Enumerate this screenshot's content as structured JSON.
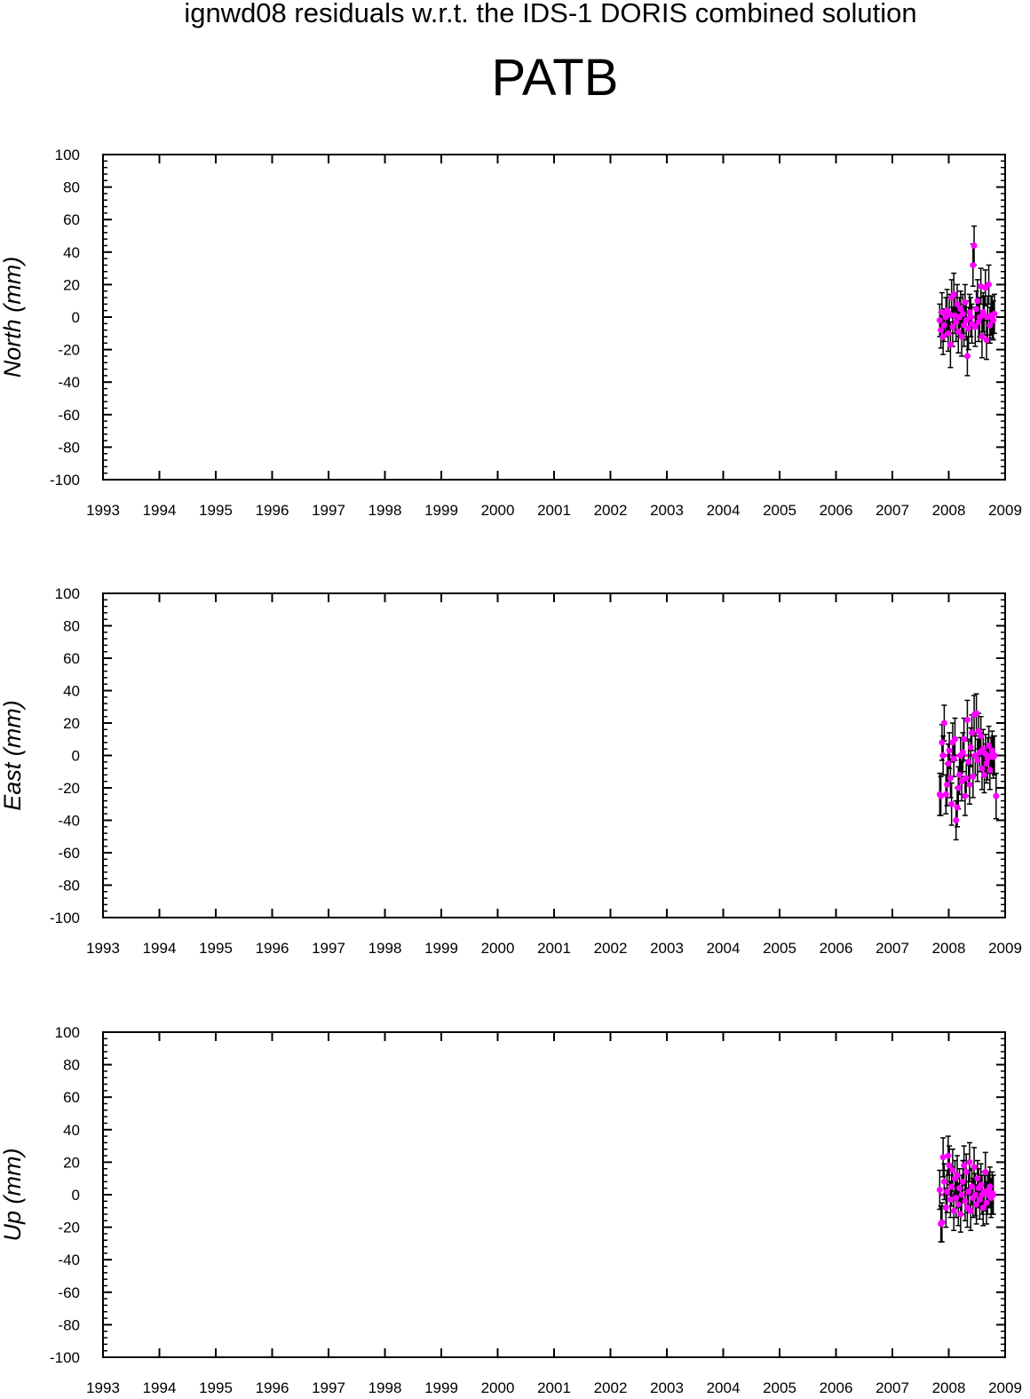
{
  "figure": {
    "title": "ignwd08 residuals w.r.t. the IDS-1 DORIS combined solution",
    "station": "PATB"
  },
  "chart_data": [
    {
      "type": "scatter",
      "panel": "north",
      "ylabel": "North (mm)",
      "xlim": [
        1993,
        2009
      ],
      "ylim": [
        -100,
        100
      ],
      "x_ticks": [
        "1993",
        "1994",
        "1995",
        "1996",
        "1997",
        "1998",
        "1999",
        "2000",
        "2001",
        "2002",
        "2003",
        "2004",
        "2005",
        "2006",
        "2007",
        "2008",
        "2009"
      ],
      "y_ticks": [
        "100",
        "80",
        "60",
        "40",
        "20",
        "0",
        "-20",
        "-40",
        "-60",
        "-80",
        "-100"
      ],
      "marker_color": "#ff00ff",
      "errorbar_color": "#000000",
      "series": [
        {
          "x": [
            2007.84,
            2007.86,
            2007.88,
            2007.9,
            2007.92,
            2007.95,
            2007.97,
            2007.99,
            2008.01,
            2008.03,
            2008.05,
            2008.07,
            2008.09,
            2008.11,
            2008.13,
            2008.15,
            2008.17,
            2008.19,
            2008.21,
            2008.23,
            2008.25,
            2008.27,
            2008.29,
            2008.31,
            2008.33,
            2008.35,
            2008.37,
            2008.39,
            2008.41,
            2008.43,
            2008.45,
            2008.47,
            2008.49,
            2008.51,
            2008.53,
            2008.55,
            2008.57,
            2008.59,
            2008.61,
            2008.63,
            2008.65,
            2008.67,
            2008.69,
            2008.71,
            2008.73,
            2008.75,
            2008.77,
            2008.79,
            2008.81
          ],
          "y": [
            -2,
            -8,
            3,
            -12,
            -5,
            0,
            4,
            -10,
            2,
            -17,
            12,
            -6,
            14,
            1,
            -3,
            8,
            -9,
            0,
            5,
            -12,
            2,
            -5,
            9,
            -2,
            -24,
            -7,
            3,
            0,
            -4,
            32,
            44,
            -6,
            5,
            10,
            -3,
            0,
            19,
            -12,
            3,
            1,
            18,
            -14,
            0,
            20,
            -5,
            1,
            0,
            -2,
            2
          ],
          "err": [
            10,
            11,
            12,
            11,
            10,
            12,
            13,
            11,
            12,
            14,
            11,
            12,
            13,
            11,
            12,
            12,
            13,
            12,
            11,
            12,
            12,
            13,
            11,
            12,
            12,
            13,
            11,
            12,
            12,
            13,
            12,
            12,
            11,
            13,
            12,
            12,
            11,
            13,
            12,
            12,
            11,
            12,
            13,
            12,
            11,
            12,
            13,
            12,
            12
          ]
        }
      ]
    },
    {
      "type": "scatter",
      "panel": "east",
      "ylabel": "East (mm)",
      "xlim": [
        1993,
        2009
      ],
      "ylim": [
        -100,
        100
      ],
      "x_ticks": [
        "1993",
        "1994",
        "1995",
        "1996",
        "1997",
        "1998",
        "1999",
        "2000",
        "2001",
        "2002",
        "2003",
        "2004",
        "2005",
        "2006",
        "2007",
        "2008",
        "2009"
      ],
      "y_ticks": [
        "100",
        "80",
        "60",
        "40",
        "20",
        "0",
        "-20",
        "-40",
        "-60",
        "-80",
        "-100"
      ],
      "marker_color": "#ff00ff",
      "errorbar_color": "#000000",
      "series": [
        {
          "x": [
            2007.84,
            2007.86,
            2007.88,
            2007.9,
            2007.92,
            2007.95,
            2007.97,
            2007.99,
            2008.01,
            2008.03,
            2008.05,
            2008.07,
            2008.09,
            2008.11,
            2008.13,
            2008.15,
            2008.17,
            2008.19,
            2008.21,
            2008.23,
            2008.25,
            2008.27,
            2008.29,
            2008.31,
            2008.33,
            2008.35,
            2008.37,
            2008.39,
            2008.41,
            2008.43,
            2008.45,
            2008.47,
            2008.49,
            2008.51,
            2008.53,
            2008.55,
            2008.57,
            2008.59,
            2008.61,
            2008.63,
            2008.65,
            2008.67,
            2008.69,
            2008.71,
            2008.73,
            2008.75,
            2008.77,
            2008.79,
            2008.81,
            2008.84
          ],
          "y": [
            -24,
            -25,
            8,
            0,
            20,
            -24,
            -18,
            -5,
            3,
            -14,
            -30,
            8,
            -2,
            10,
            -40,
            -32,
            -20,
            -12,
            0,
            -16,
            2,
            10,
            -25,
            -14,
            22,
            -4,
            -18,
            5,
            14,
            -13,
            25,
            0,
            26,
            -3,
            15,
            2,
            12,
            -8,
            4,
            -12,
            1,
            -5,
            -2,
            6,
            -9,
            0,
            3,
            -1,
            0,
            -25
          ],
          "err": [
            13,
            12,
            11,
            12,
            11,
            12,
            13,
            12,
            11,
            12,
            13,
            12,
            11,
            13,
            12,
            12,
            13,
            12,
            11,
            12,
            12,
            13,
            12,
            11,
            12,
            13,
            12,
            12,
            11,
            13,
            12,
            12,
            12,
            13,
            11,
            12,
            12,
            13,
            12,
            11,
            12,
            12,
            13,
            12,
            12,
            11,
            12,
            13,
            12,
            14
          ]
        }
      ]
    },
    {
      "type": "scatter",
      "panel": "up",
      "ylabel": "Up (mm)",
      "xlim": [
        1993,
        2009
      ],
      "ylim": [
        -100,
        100
      ],
      "x_ticks": [
        "1993",
        "1994",
        "1995",
        "1996",
        "1997",
        "1998",
        "1999",
        "2000",
        "2001",
        "2002",
        "2003",
        "2004",
        "2005",
        "2006",
        "2007",
        "2008",
        "2009"
      ],
      "y_ticks": [
        "100",
        "80",
        "60",
        "40",
        "20",
        "0",
        "-20",
        "-40",
        "-60",
        "-80",
        "-100"
      ],
      "marker_color": "#ff00ff",
      "errorbar_color": "#000000",
      "series": [
        {
          "x": [
            2007.84,
            2007.86,
            2007.88,
            2007.9,
            2007.92,
            2007.95,
            2007.97,
            2007.99,
            2008.01,
            2008.03,
            2008.05,
            2008.07,
            2008.09,
            2008.11,
            2008.13,
            2008.15,
            2008.17,
            2008.19,
            2008.21,
            2008.23,
            2008.25,
            2008.27,
            2008.29,
            2008.31,
            2008.33,
            2008.35,
            2008.37,
            2008.39,
            2008.41,
            2008.43,
            2008.45,
            2008.47,
            2008.49,
            2008.51,
            2008.53,
            2008.55,
            2008.57,
            2008.59,
            2008.61,
            2008.63,
            2008.65,
            2008.67,
            2008.69,
            2008.71,
            2008.73,
            2008.75,
            2008.77,
            2008.79
          ],
          "y": [
            3,
            -18,
            -17,
            23,
            8,
            -8,
            2,
            24,
            18,
            -3,
            5,
            15,
            -10,
            10,
            -2,
            12,
            -6,
            4,
            -12,
            0,
            8,
            18,
            -4,
            14,
            -8,
            2,
            20,
            -10,
            5,
            -2,
            17,
            0,
            -6,
            10,
            4,
            -3,
            6,
            0,
            -8,
            2,
            14,
            -5,
            0,
            3,
            5,
            -2,
            1,
            0
          ],
          "err": [
            12,
            11,
            12,
            12,
            11,
            12,
            13,
            12,
            12,
            11,
            12,
            13,
            12,
            11,
            12,
            12,
            13,
            12,
            11,
            12,
            13,
            12,
            12,
            11,
            12,
            13,
            12,
            12,
            11,
            12,
            12,
            13,
            12,
            11,
            12,
            12,
            13,
            12,
            11,
            12,
            12,
            13,
            12,
            11,
            12,
            12,
            13,
            12
          ]
        }
      ]
    }
  ]
}
